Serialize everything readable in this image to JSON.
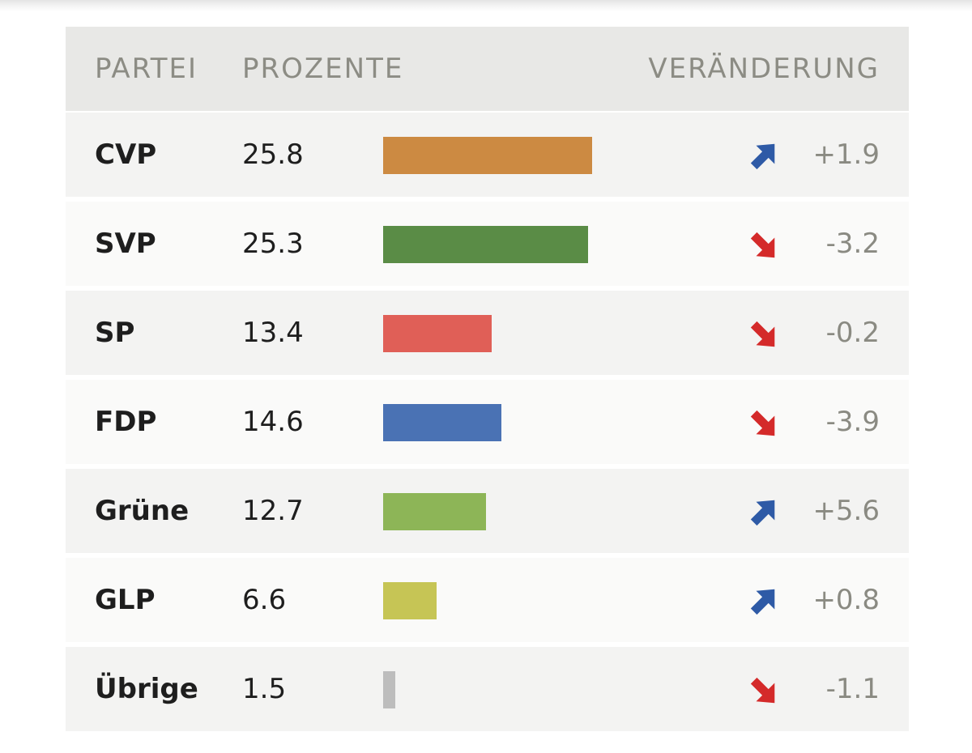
{
  "chart_data": {
    "type": "bar",
    "orientation": "horizontal",
    "columns": [
      "PARTEI",
      "PROZENTE",
      "VERÄNDERUNG"
    ],
    "categories": [
      "CVP",
      "SVP",
      "SP",
      "FDP",
      "Grüne",
      "GLP",
      "Übrige"
    ],
    "values": [
      25.8,
      25.3,
      13.4,
      14.6,
      12.7,
      6.6,
      1.5
    ],
    "value_labels": [
      "25.8",
      "25.3",
      "13.4",
      "14.6",
      "12.7",
      "6.6",
      "1.5"
    ],
    "changes": [
      1.9,
      -3.2,
      -0.2,
      -3.9,
      5.6,
      0.8,
      -1.1
    ],
    "change_labels": [
      "+1.9",
      "-3.2",
      "-0.2",
      "-3.9",
      "+5.6",
      "+0.8",
      "-1.1"
    ],
    "colors": [
      "#cc8a42",
      "#5a8c46",
      "#e05f57",
      "#4a72b4",
      "#8db557",
      "#c6c555",
      "#bdbdbd"
    ],
    "xlim": [
      0,
      25.8
    ],
    "arrow_colors": {
      "up": "#2e5aa6",
      "down": "#d42a2a"
    }
  }
}
